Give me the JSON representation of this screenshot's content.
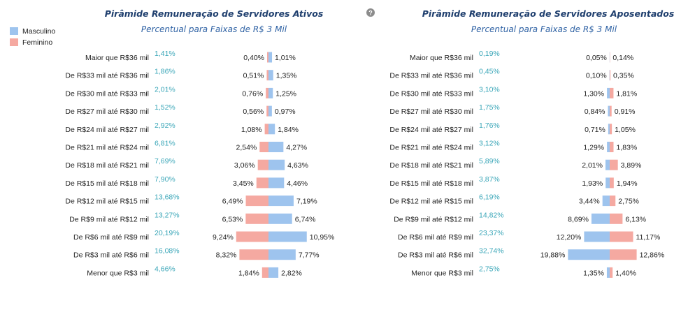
{
  "legend": {
    "male_label": "Masculino",
    "female_label": "Feminino",
    "male_color": "#9ec4ee",
    "female_color": "#f5a9a1"
  },
  "help_icon": {
    "name": "question-circle-icon",
    "glyph": "?"
  },
  "colors": {
    "title": "#1f3f6e",
    "subtitle": "#2f62a4",
    "total": "#3aa6b8"
  },
  "chart_data": [
    {
      "type": "bar",
      "orientation": "horizontal-diverging",
      "title": "Pirâmide Remuneração de Servidores Ativos",
      "subtitle": "Percentual para Faixas de R$ 3 Mil",
      "categories": [
        "Maior que R$36 mil",
        "De R$33 mil até R$36 mil",
        "De R$30 mil até R$33 mil",
        "De R$27 mil até R$30 mil",
        "De R$24 mil até R$27 mil",
        "De R$21 mil até R$24 mil",
        "De R$18 mil até R$21 mil",
        "De R$15 mil até R$18 mil",
        "De R$12 mil até R$15 mil",
        "De R$9 mil até R$12 mil",
        "De R$6 mil até R$9 mil",
        "De R$3 mil até R$6 mil",
        "Menor que R$3 mil"
      ],
      "totals": [
        "1,41%",
        "1,86%",
        "2,01%",
        "1,52%",
        "2,92%",
        "6,81%",
        "7,69%",
        "7,90%",
        "13,68%",
        "13,27%",
        "20,19%",
        "16,08%",
        "4,66%"
      ],
      "series": [
        {
          "name": "Feminino",
          "side": "left",
          "values": [
            0.4,
            0.51,
            0.76,
            0.56,
            1.08,
            2.54,
            3.06,
            3.45,
            6.49,
            6.53,
            9.24,
            8.32,
            1.84
          ],
          "labels": [
            "0,40%",
            "0,51%",
            "0,76%",
            "0,56%",
            "1,08%",
            "2,54%",
            "3,06%",
            "3,45%",
            "6,49%",
            "6,53%",
            "9,24%",
            "8,32%",
            "1,84%"
          ]
        },
        {
          "name": "Masculino",
          "side": "right",
          "values": [
            1.01,
            1.35,
            1.25,
            0.97,
            1.84,
            4.27,
            4.63,
            4.46,
            7.19,
            6.74,
            10.95,
            7.77,
            2.82
          ],
          "labels": [
            "1,01%",
            "1,35%",
            "1,25%",
            "0,97%",
            "1,84%",
            "4,27%",
            "4,63%",
            "4,46%",
            "7,19%",
            "6,74%",
            "10,95%",
            "7,77%",
            "2,82%"
          ]
        }
      ]
    },
    {
      "type": "bar",
      "orientation": "horizontal-diverging",
      "title": "Pirâmide Remuneração de Servidores Aposentados",
      "subtitle": "Percentual para Faixas de R$ 3 Mil",
      "categories": [
        "Maior que R$36 mil",
        "De R$33 mil até R$36 mil",
        "De R$30 mil até R$33 mil",
        "De R$27 mil até R$30 mil",
        "De R$24 mil até R$27 mil",
        "De R$21 mil até R$24 mil",
        "De R$18 mil até R$21 mil",
        "De R$15 mil até R$18 mil",
        "De R$12 mil até R$15 mil",
        "De R$9 mil até R$12 mil",
        "De R$6 mil até R$9 mil",
        "De R$3 mil até R$6 mil",
        "Menor que R$3 mil"
      ],
      "totals": [
        "0,19%",
        "0,45%",
        "3,10%",
        "1,75%",
        "1,76%",
        "3,12%",
        "5,89%",
        "3,87%",
        "6,19%",
        "14,82%",
        "23,37%",
        "32,74%",
        "2,75%"
      ],
      "series": [
        {
          "name": "Masculino",
          "side": "left",
          "values": [
            0.05,
            0.1,
            1.3,
            0.84,
            0.71,
            1.29,
            2.01,
            1.93,
            3.44,
            8.69,
            12.2,
            19.88,
            1.35
          ],
          "labels": [
            "0,05%",
            "0,10%",
            "1,30%",
            "0,84%",
            "0,71%",
            "1,29%",
            "2,01%",
            "1,93%",
            "3,44%",
            "8,69%",
            "12,20%",
            "19,88%",
            "1,35%"
          ]
        },
        {
          "name": "Feminino",
          "side": "right",
          "values": [
            0.14,
            0.35,
            1.81,
            0.91,
            1.05,
            1.83,
            3.89,
            1.94,
            2.75,
            6.13,
            11.17,
            12.86,
            1.4
          ],
          "labels": [
            "0,14%",
            "0,35%",
            "1,81%",
            "0,91%",
            "1,05%",
            "1,83%",
            "3,89%",
            "1,94%",
            "2,75%",
            "6,13%",
            "11,17%",
            "12,86%",
            "1,40%"
          ]
        }
      ]
    }
  ]
}
